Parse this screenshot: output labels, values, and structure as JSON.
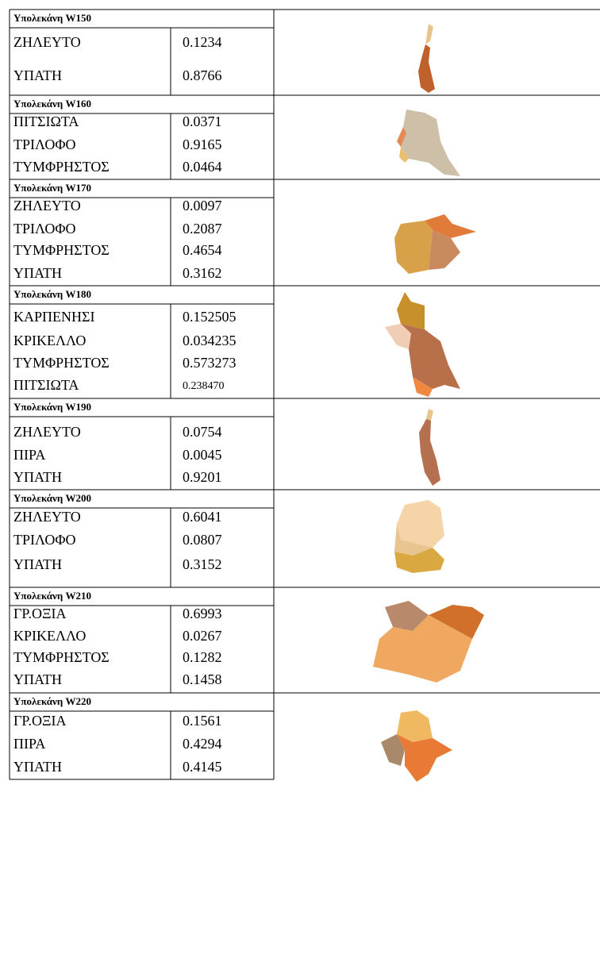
{
  "sections": [
    {
      "title": "Υπολεκάνη W150",
      "rows": [
        [
          "ΖΗΛΕΥΤΟ",
          "0.1234"
        ],
        [
          "ΥΠΑΤΗ",
          "0.8766"
        ]
      ]
    },
    {
      "title": "Υπολεκάνη W160",
      "rows": [
        [
          "ΠΙΤΣΙΩΤΑ",
          "0.0371"
        ],
        [
          "ΤΡΙΛΟΦΟ",
          "0.9165"
        ],
        [
          "ΤΥΜΦΡΗΣΤΟΣ",
          "0.0464"
        ]
      ]
    },
    {
      "title": "Υπολεκάνη W170",
      "rows": [
        [
          "ΖΗΛΕΥΤΟ",
          "0.0097"
        ],
        [
          "ΤΡΙΛΟΦΟ",
          "0.2087"
        ],
        [
          "ΤΥΜΦΡΗΣΤΟΣ",
          "0.4654"
        ],
        [
          "ΥΠΑΤΗ",
          "0.3162"
        ]
      ]
    },
    {
      "title": "Υπολεκάνη W180",
      "rows": [
        [
          "ΚΑΡΠΕΝΗΣΙ",
          "0.152505"
        ],
        [
          "ΚΡΙΚΕΛΛΟ",
          "0.034235"
        ],
        [
          "ΤΥΜΦΡΗΣΤΟΣ",
          "0.573273"
        ],
        [
          "ΠΙΤΣΙΩΤΑ",
          "0.238470"
        ]
      ]
    },
    {
      "title": "Υπολεκάνη W190",
      "rows": [
        [
          "ΖΗΛΕΥΤΟ",
          "0.0754"
        ],
        [
          "ΠΙΡΑ",
          "0.0045"
        ],
        [
          "ΥΠΑΤΗ",
          "0.9201"
        ]
      ]
    },
    {
      "title": "Υπολεκάνη W200",
      "rows": [
        [
          "ΖΗΛΕΥΤΟ",
          "0.6041"
        ],
        [
          "ΤΡΙΛΟΦΟ",
          "0.0807"
        ],
        [
          "ΥΠΑΤΗ",
          "0.3152"
        ]
      ]
    },
    {
      "title": "Υπολεκάνη W210",
      "rows": [
        [
          "ΓΡ.ΟΞΙΑ",
          "0.6993"
        ],
        [
          "ΚΡΙΚΕΛΛΟ",
          "0.0267"
        ],
        [
          "ΤΥΜΦΡΗΣΤΟΣ",
          "0.1282"
        ],
        [
          "ΥΠΑΤΗ",
          "0.1458"
        ]
      ]
    },
    {
      "title": "Υπολεκάνη W220",
      "rows": [
        [
          "ΓΡ.ΟΞΙΑ",
          "0.1561"
        ],
        [
          "ΠΙΡΑ",
          "0.4294"
        ],
        [
          "ΥΠΑΤΗ",
          "0.4145"
        ]
      ]
    }
  ]
}
